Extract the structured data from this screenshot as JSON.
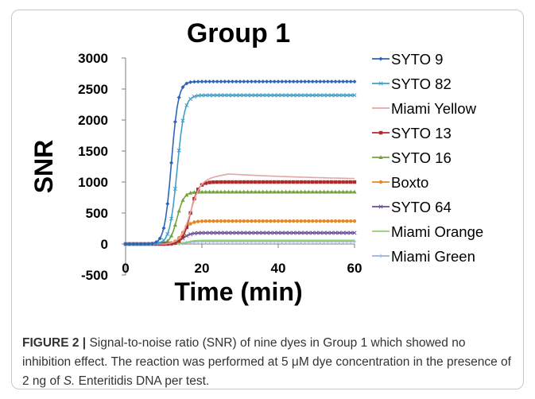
{
  "caption": {
    "label": "FIGURE 2 |",
    "text_1": " Signal-to-noise ratio (SNR) of nine dyes in Group 1 which showed no inhibition effect. The reaction was performed at 5 ",
    "unit": "μM",
    "text_2": " dye concentration in the presence of 2 ng of ",
    "species": "S.",
    "text_3": " Enteritidis DNA per test."
  },
  "chart_data": {
    "type": "line",
    "title": "Group 1",
    "xlabel": "Time (min)",
    "ylabel": "SNR",
    "xlim": [
      0,
      60
    ],
    "ylim": [
      -500,
      3000
    ],
    "xticks": [
      0,
      20,
      40,
      60
    ],
    "yticks": [
      -500,
      0,
      500,
      1000,
      1500,
      2000,
      2500,
      3000
    ],
    "grid": false,
    "legend_position": "right",
    "series": [
      {
        "name": "SYTO 9",
        "color": "#2E64B5",
        "marker": "diamond",
        "onset": 8,
        "midpoint": 12,
        "rise": 0.9,
        "plateau": 2620,
        "peak": 0
      },
      {
        "name": "SYTO 82",
        "color": "#3E9FC9",
        "marker": "x",
        "onset": 9,
        "midpoint": 13.5,
        "rise": 0.95,
        "plateau": 2400,
        "peak": 0
      },
      {
        "name": "Miami Yellow",
        "color": "#E3A6A6",
        "marker": "none",
        "onset": 13,
        "midpoint": 17,
        "rise": 1.3,
        "plateau": 1020,
        "peak": 110
      },
      {
        "name": "SYTO 13",
        "color": "#B32A2A",
        "marker": "square",
        "onset": 13,
        "midpoint": 17,
        "rise": 1.0,
        "plateau": 1000,
        "peak": 0
      },
      {
        "name": "SYTO 16",
        "color": "#74A33C",
        "marker": "triangle",
        "onset": 10,
        "midpoint": 13.5,
        "rise": 0.9,
        "plateau": 840,
        "peak": 0
      },
      {
        "name": "Boxto",
        "color": "#E88622",
        "marker": "circle",
        "onset": 11,
        "midpoint": 15,
        "rise": 1.0,
        "plateau": 370,
        "peak": 0
      },
      {
        "name": "SYTO 64",
        "color": "#6B4C9A",
        "marker": "x",
        "onset": 11,
        "midpoint": 15,
        "rise": 1.0,
        "plateau": 180,
        "peak": 0
      },
      {
        "name": "Miami Orange",
        "color": "#8FD26B",
        "marker": "none",
        "onset": 12,
        "midpoint": 16,
        "rise": 1.0,
        "plateau": 60,
        "peak": 0
      },
      {
        "name": "Miami Green",
        "color": "#9AB3D9",
        "marker": "plus",
        "onset": 12,
        "midpoint": 16,
        "rise": 1.0,
        "plateau": 40,
        "peak": 0
      }
    ]
  }
}
